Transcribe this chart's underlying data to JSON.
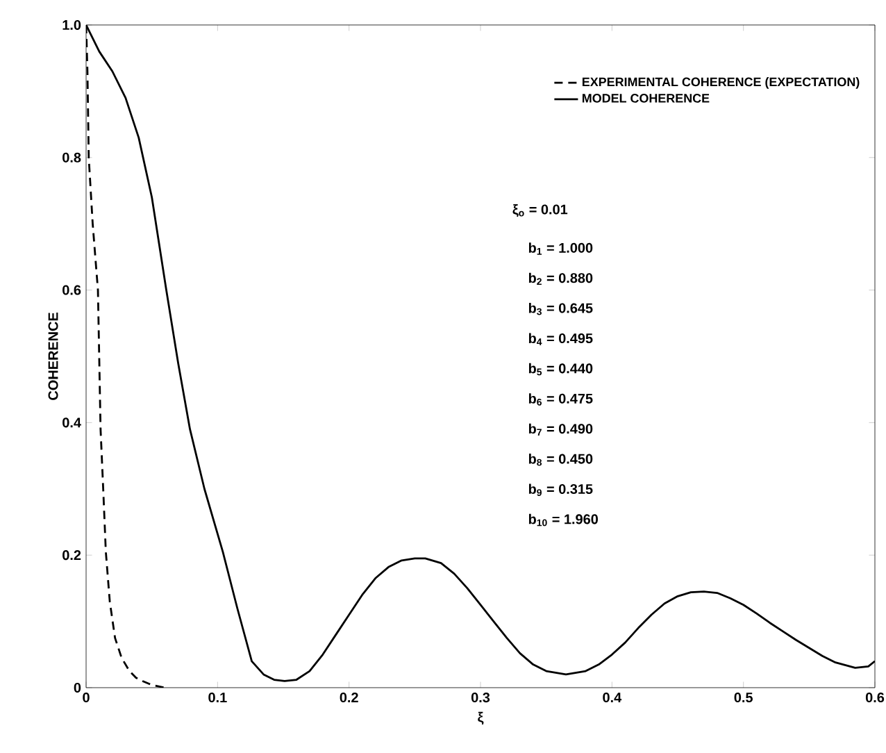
{
  "chart_data": {
    "type": "line",
    "xlabel": "ξ",
    "ylabel": "COHERENCE",
    "xlim": [
      0,
      0.6
    ],
    "ylim": [
      0,
      1.0
    ],
    "xticks": [
      0,
      0.1,
      0.2,
      0.3,
      0.4,
      0.5,
      0.6
    ],
    "yticks": [
      0,
      0.2,
      0.4,
      0.6,
      0.8,
      {
        "value": 1.0,
        "label": "1.0"
      }
    ],
    "legend": "top right",
    "marker": "none",
    "series": [
      {
        "name": "EXPERIMENTAL COHERENCE (EXPECTATION)",
        "color": "#000000",
        "line_style": "dashed",
        "x": [
          0,
          0.001,
          0.002,
          0.005,
          0.009,
          0.011,
          0.013,
          0.015,
          0.018,
          0.022,
          0.027,
          0.033,
          0.038,
          0.043,
          0.05,
          0.06
        ],
        "values": [
          1.0,
          0.93,
          0.8,
          0.7,
          0.6,
          0.39,
          0.3,
          0.205,
          0.13,
          0.075,
          0.045,
          0.025,
          0.015,
          0.01,
          0.004,
          0.0
        ]
      },
      {
        "name": "MODEL COHERENCE",
        "color": "#000000",
        "line_style": "solid",
        "x": [
          0,
          0.01,
          0.02,
          0.03,
          0.04,
          0.05,
          0.061,
          0.07,
          0.079,
          0.09,
          0.104,
          0.115,
          0.126,
          0.135,
          0.143,
          0.151,
          0.16,
          0.17,
          0.18,
          0.19,
          0.2,
          0.21,
          0.22,
          0.23,
          0.24,
          0.25,
          0.258,
          0.27,
          0.28,
          0.29,
          0.3,
          0.31,
          0.32,
          0.33,
          0.34,
          0.35,
          0.365,
          0.38,
          0.39,
          0.4,
          0.41,
          0.42,
          0.43,
          0.44,
          0.45,
          0.46,
          0.47,
          0.48,
          0.49,
          0.5,
          0.51,
          0.52,
          0.53,
          0.54,
          0.55,
          0.56,
          0.57,
          0.585,
          0.595,
          0.6
        ],
        "values": [
          1.0,
          0.96,
          0.93,
          0.89,
          0.83,
          0.74,
          0.6,
          0.49,
          0.39,
          0.3,
          0.205,
          0.12,
          0.04,
          0.02,
          0.012,
          0.01,
          0.012,
          0.025,
          0.05,
          0.08,
          0.11,
          0.14,
          0.165,
          0.182,
          0.192,
          0.195,
          0.195,
          0.188,
          0.172,
          0.15,
          0.125,
          0.1,
          0.075,
          0.052,
          0.035,
          0.025,
          0.02,
          0.025,
          0.035,
          0.05,
          0.068,
          0.09,
          0.11,
          0.127,
          0.138,
          0.144,
          0.145,
          0.143,
          0.135,
          0.125,
          0.112,
          0.098,
          0.085,
          0.072,
          0.06,
          0.048,
          0.038,
          0.03,
          0.032,
          0.04
        ]
      }
    ],
    "annotations": [
      "ξ$_{o}$ = 0.01",
      "b$_{1}$ = 1.000",
      "b$_{2}$ = 0.880",
      "b$_{3}$ = 0.645",
      "b$_{4}$ = 0.495",
      "b$_{5}$ = 0.440",
      "b$_{6}$ = 0.475",
      "b$_{7}$ = 0.490",
      "b$_{8}$ = 0.450",
      "b$_{9}$ = 0.315",
      "b$_{10}$ = 1.960"
    ]
  }
}
